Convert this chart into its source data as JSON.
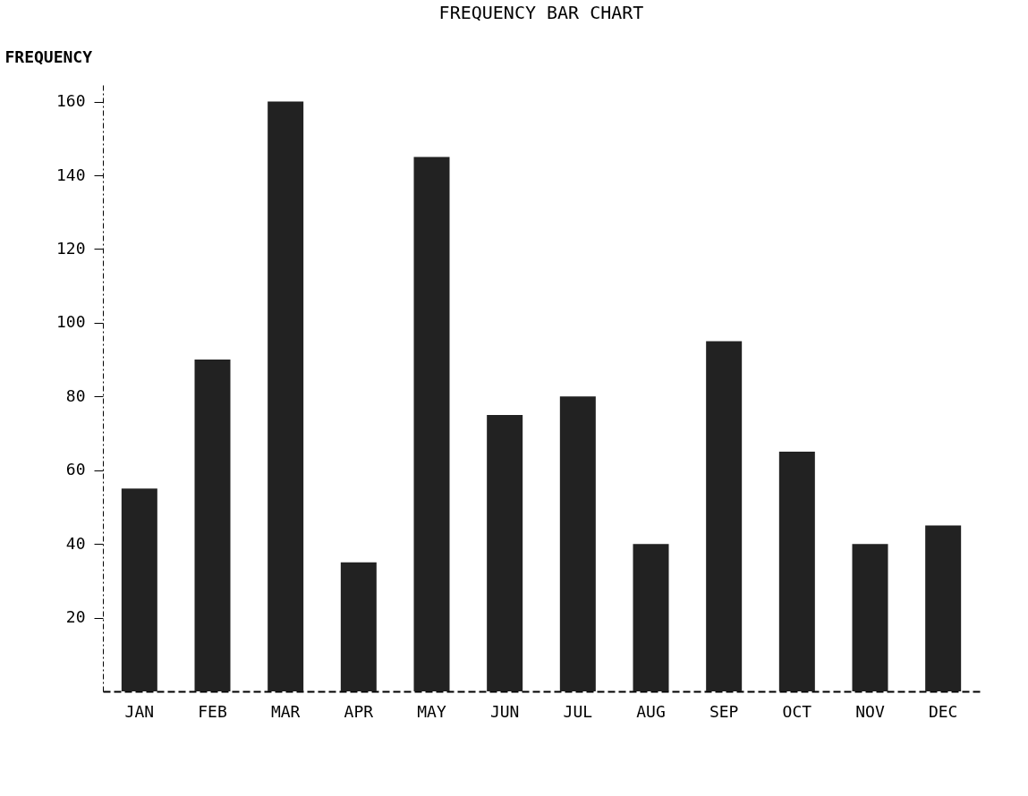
{
  "chart_data": {
    "type": "bar",
    "title": "FREQUENCY BAR CHART",
    "ylabel": "FREQUENCY",
    "categories": [
      "JAN",
      "FEB",
      "MAR",
      "APR",
      "MAY",
      "JUN",
      "JUL",
      "AUG",
      "SEP",
      "OCT",
      "NOV",
      "DEC"
    ],
    "values": [
      55,
      90,
      160,
      35,
      145,
      75,
      80,
      40,
      95,
      65,
      40,
      45
    ],
    "color": "#222222",
    "ylim": [
      0,
      165
    ],
    "yticks": [
      20,
      40,
      60,
      80,
      100,
      120,
      140,
      160
    ],
    "grid": false
  }
}
